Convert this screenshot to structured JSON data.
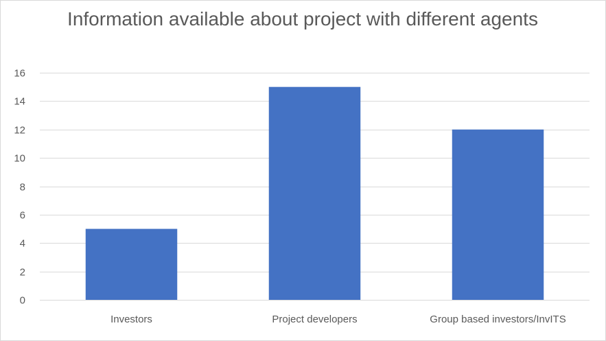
{
  "chart_data": {
    "type": "bar",
    "title": "Information available about project with different agents",
    "xlabel": "",
    "ylabel": "",
    "categories": [
      "Investors",
      "Project developers",
      "Group based investors/InvITS"
    ],
    "values": [
      5,
      15,
      12
    ],
    "ylim": [
      0,
      16
    ],
    "yticks": [
      0,
      2,
      4,
      6,
      8,
      10,
      12,
      14,
      16
    ],
    "grid": true,
    "legend": "none",
    "bar_color": "#4472C4"
  }
}
